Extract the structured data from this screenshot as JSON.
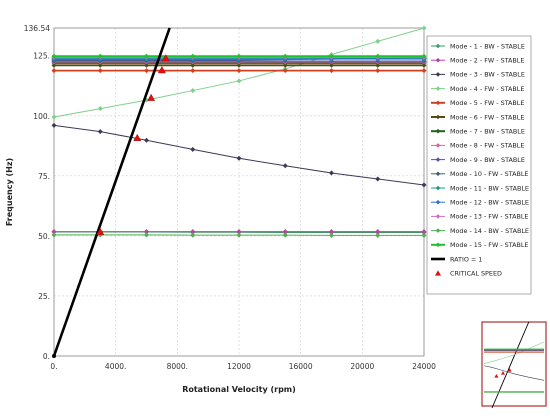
{
  "chart_data": {
    "type": "line",
    "title": "",
    "xlabel": "Rotational Velocity (rpm)",
    "ylabel": "Frequency (Hz)",
    "xlim": [
      0,
      24000
    ],
    "ylim": [
      0,
      136.54
    ],
    "xticks": [
      0,
      4000,
      8000,
      12000,
      16000,
      20000,
      24000
    ],
    "xtick_labels": [
      "0.",
      "4000.",
      "8000.",
      "12000",
      "16000",
      "20000",
      "24000"
    ],
    "yticks": [
      0,
      25,
      50,
      75,
      100,
      125,
      136.54
    ],
    "ytick_labels": [
      "0.",
      "25.",
      "50.",
      "75.",
      "100.",
      "125.",
      "136.54"
    ],
    "grid": true,
    "legend_position": "right",
    "x": [
      0,
      3000,
      6000,
      9000,
      12000,
      15000,
      18000,
      21000,
      24000
    ],
    "series": [
      {
        "name": "Mode - 1 - BW - STABLE",
        "color": "#3a9a6a",
        "marker": "diamond",
        "values": [
          51.6,
          51.6,
          51.6,
          51.5,
          51.5,
          51.4,
          51.4,
          51.4,
          51.4
        ]
      },
      {
        "name": "Mode - 2 - FW - STABLE",
        "color": "#c040a0",
        "marker": "diamond",
        "values": [
          51.8,
          51.8,
          51.8,
          51.8,
          51.8,
          51.8,
          51.8,
          51.8,
          51.8
        ]
      },
      {
        "name": "Mode - 3 - BW - STABLE",
        "color": "#3a3a55",
        "marker": "diamond",
        "values": [
          96.0,
          93.4,
          89.8,
          86.0,
          82.3,
          79.2,
          76.2,
          73.7,
          71.2
        ]
      },
      {
        "name": "Mode - 4 - FW - STABLE",
        "color": "#7fd08a",
        "marker": "diamond",
        "values": [
          99.5,
          103.0,
          106.5,
          110.5,
          114.5,
          119.5,
          125.5,
          131.0,
          136.5
        ]
      },
      {
        "name": "Mode - 5 - FW - STABLE",
        "color": "#d04020",
        "marker": "diamond",
        "values": [
          118.8,
          118.8,
          118.8,
          118.8,
          118.8,
          118.8,
          118.8,
          118.8,
          118.8
        ]
      },
      {
        "name": "Mode - 6 - FW - STABLE",
        "color": "#5a4a10",
        "marker": "diamond",
        "values": [
          121.0,
          121.0,
          121.0,
          121.0,
          121.0,
          121.0,
          121.0,
          121.0,
          121.0
        ]
      },
      {
        "name": "Mode - 7 - BW - STABLE",
        "color": "#206020",
        "marker": "diamond",
        "values": [
          122.0,
          122.0,
          122.0,
          122.0,
          122.0,
          122.0,
          122.0,
          122.0,
          122.0
        ]
      },
      {
        "name": "Mode - 8 - FW - STABLE",
        "color": "#e060a0",
        "marker": "diamond",
        "values": [
          122.4,
          122.4,
          122.4,
          122.4,
          122.4,
          122.4,
          122.4,
          122.4,
          122.4
        ]
      },
      {
        "name": "Mode - 9 - BW - STABLE",
        "color": "#5050c0",
        "marker": "diamond",
        "values": [
          122.8,
          122.8,
          122.8,
          122.8,
          122.8,
          122.8,
          122.8,
          122.8,
          122.8
        ]
      },
      {
        "name": "Mode - 10 - FW - STABLE",
        "color": "#406070",
        "marker": "diamond",
        "values": [
          123.2,
          123.2,
          123.2,
          123.2,
          123.2,
          123.4,
          123.6,
          123.8,
          124.0
        ]
      },
      {
        "name": "Mode - 11 - BW - STABLE",
        "color": "#10a080",
        "marker": "diamond",
        "values": [
          123.6,
          123.6,
          123.6,
          123.6,
          123.6,
          123.6,
          123.6,
          123.6,
          123.6
        ]
      },
      {
        "name": "Mode - 12 - BW - STABLE",
        "color": "#3070d0",
        "marker": "diamond",
        "values": [
          124.0,
          124.0,
          124.0,
          124.0,
          124.0,
          124.0,
          124.0,
          124.0,
          124.0
        ]
      },
      {
        "name": "Mode - 13 - FW - STABLE",
        "color": "#d070c0",
        "marker": "diamond",
        "values": [
          124.4,
          124.4,
          124.4,
          124.4,
          124.4,
          124.4,
          124.4,
          124.4,
          124.4
        ]
      },
      {
        "name": "Mode - 14 - BW - STABLE",
        "color": "#50b050",
        "marker": "diamond",
        "values": [
          50.4,
          50.4,
          50.4,
          50.3,
          50.3,
          50.3,
          50.2,
          50.2,
          50.2
        ]
      },
      {
        "name": "Mode - 15 - FW - STABLE",
        "color": "#20c030",
        "marker": "diamond",
        "values": [
          124.8,
          124.8,
          124.8,
          124.8,
          124.8,
          124.8,
          124.8,
          124.8,
          124.8
        ]
      }
    ],
    "ratio_line": {
      "name": "RATIO = 1",
      "color": "#000000",
      "x": [
        0,
        7500
      ],
      "y": [
        0,
        136.54
      ]
    },
    "critical_speeds": {
      "name": "CRITICAL SPEED",
      "color": "#e01010",
      "points": [
        {
          "x": 3000,
          "y": 51.7
        },
        {
          "x": 5400,
          "y": 90.8
        },
        {
          "x": 6300,
          "y": 107.5
        },
        {
          "x": 7000,
          "y": 119.0
        },
        {
          "x": 7250,
          "y": 124.0
        }
      ]
    }
  }
}
